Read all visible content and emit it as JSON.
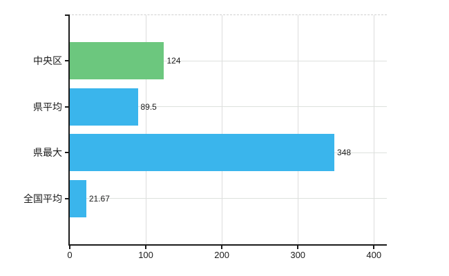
{
  "chart_data": {
    "type": "bar",
    "orientation": "horizontal",
    "title": "",
    "xlabel": "",
    "ylabel": "",
    "categories": [
      "中央区",
      "県平均",
      "県最大",
      "全国平均"
    ],
    "values": [
      124,
      89.5,
      348,
      21.67
    ],
    "value_labels": [
      "124",
      "89.5",
      "348",
      "21.67"
    ],
    "bar_colors": [
      "#6cc77e",
      "#3ab5ec",
      "#3ab5ec",
      "#3ab5ec"
    ],
    "xlim": [
      0,
      417
    ],
    "x_ticks": [
      0,
      100,
      200,
      300,
      400
    ],
    "x_tick_labels": [
      "0",
      "100",
      "200",
      "300",
      "400"
    ],
    "grid": true,
    "legend": false,
    "colors": {
      "background": "#ffffff",
      "axis": "#1a1a1a",
      "gridline": "#dcdcdc",
      "text": "#1a1a1a",
      "green_bar": "#6cc77e",
      "blue_bar": "#3ab5ec"
    }
  }
}
